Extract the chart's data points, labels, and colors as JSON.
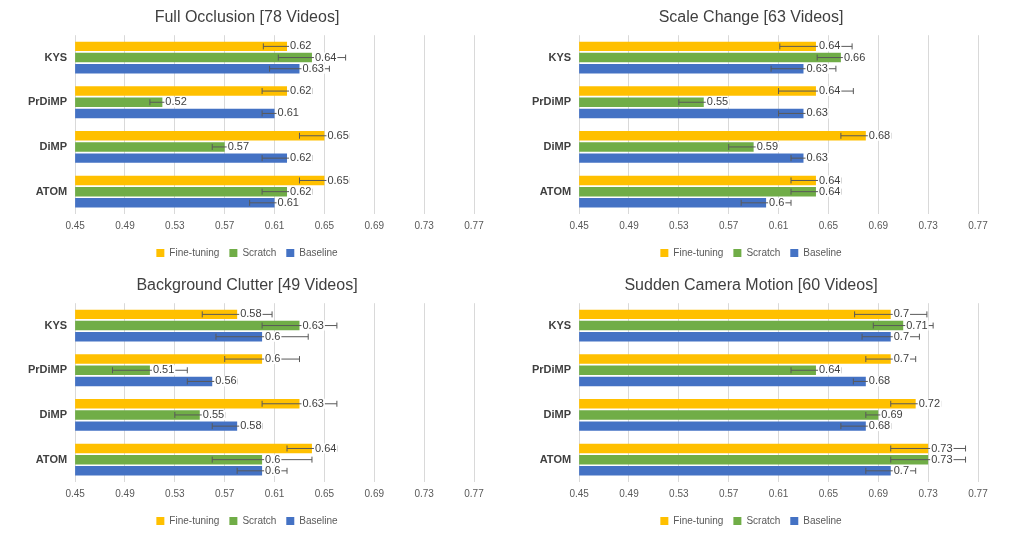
{
  "chart_data": [
    {
      "type": "bar",
      "orientation": "horizontal",
      "title": "Full Occlusion [78 Videos]",
      "categories": [
        "KYS",
        "PrDiMP",
        "DiMP",
        "ATOM"
      ],
      "xlim": [
        0.45,
        0.77
      ],
      "xticks": [
        0.45,
        0.49,
        0.53,
        0.57,
        0.61,
        0.65,
        0.69,
        0.73,
        0.77
      ],
      "grid": "x",
      "legend": "bottom",
      "data_labels": true,
      "series": [
        {
          "name": "Fine-tuning",
          "color": "#ffc000",
          "values": [
            0.62,
            0.62,
            0.65,
            0.65
          ],
          "errors": [
            0.019,
            0.02,
            0.02,
            0.02
          ]
        },
        {
          "name": "Scratch",
          "color": "#70ad47",
          "values": [
            0.64,
            0.52,
            0.57,
            0.62
          ],
          "errors": [
            0.027,
            0.01,
            0.01,
            0.02
          ]
        },
        {
          "name": "Baseline",
          "color": "#4472c4",
          "values": [
            0.63,
            0.61,
            0.62,
            0.61
          ],
          "errors": [
            0.024,
            0.01,
            0.02,
            0.02
          ]
        }
      ]
    },
    {
      "type": "bar",
      "orientation": "horizontal",
      "title": "Scale Change [63 Videos]",
      "categories": [
        "KYS",
        "PrDiMP",
        "DiMP",
        "ATOM"
      ],
      "xlim": [
        0.45,
        0.77
      ],
      "xticks": [
        0.45,
        0.49,
        0.53,
        0.57,
        0.61,
        0.65,
        0.69,
        0.73,
        0.77
      ],
      "grid": "x",
      "legend": "bottom",
      "data_labels": true,
      "series": [
        {
          "name": "Fine-tuning",
          "color": "#ffc000",
          "values": [
            0.64,
            0.64,
            0.68,
            0.64
          ],
          "errors": [
            0.029,
            0.03,
            0.02,
            0.02
          ]
        },
        {
          "name": "Scratch",
          "color": "#70ad47",
          "values": [
            0.66,
            0.55,
            0.59,
            0.64
          ],
          "errors": [
            0.019,
            0.02,
            0.02,
            0.02
          ]
        },
        {
          "name": "Baseline",
          "color": "#4472c4",
          "values": [
            0.63,
            0.63,
            0.63,
            0.6
          ],
          "errors": [
            0.026,
            0.02,
            0.01,
            0.02
          ]
        }
      ]
    },
    {
      "type": "bar",
      "orientation": "horizontal",
      "title": "Background Clutter [49 Videos]",
      "categories": [
        "KYS",
        "PrDiMP",
        "DiMP",
        "ATOM"
      ],
      "xlim": [
        0.45,
        0.77
      ],
      "xticks": [
        0.45,
        0.49,
        0.53,
        0.57,
        0.61,
        0.65,
        0.69,
        0.73,
        0.77
      ],
      "grid": "x",
      "legend": "bottom",
      "data_labels": true,
      "series": [
        {
          "name": "Fine-tuning",
          "color": "#ffc000",
          "values": [
            0.58,
            0.6,
            0.63,
            0.64
          ],
          "errors": [
            0.028,
            0.03,
            0.03,
            0.02
          ]
        },
        {
          "name": "Scratch",
          "color": "#70ad47",
          "values": [
            0.63,
            0.51,
            0.55,
            0.6
          ],
          "errors": [
            0.03,
            0.03,
            0.02,
            0.04
          ]
        },
        {
          "name": "Baseline",
          "color": "#4472c4",
          "values": [
            0.6,
            0.56,
            0.58,
            0.6
          ],
          "errors": [
            0.037,
            0.02,
            0.02,
            0.02
          ]
        }
      ]
    },
    {
      "type": "bar",
      "orientation": "horizontal",
      "title": "Sudden Camera Motion [60 Videos]",
      "categories": [
        "KYS",
        "PrDiMP",
        "DiMP",
        "ATOM"
      ],
      "xlim": [
        0.45,
        0.77
      ],
      "xticks": [
        0.45,
        0.49,
        0.53,
        0.57,
        0.61,
        0.65,
        0.69,
        0.73,
        0.77
      ],
      "grid": "x",
      "legend": "bottom",
      "data_labels": true,
      "series": [
        {
          "name": "Fine-tuning",
          "color": "#ffc000",
          "values": [
            0.7,
            0.7,
            0.72,
            0.73
          ],
          "errors": [
            0.029,
            0.02,
            0.02,
            0.03
          ]
        },
        {
          "name": "Scratch",
          "color": "#70ad47",
          "values": [
            0.71,
            0.64,
            0.69,
            0.73
          ],
          "errors": [
            0.024,
            0.02,
            0.01,
            0.03
          ]
        },
        {
          "name": "Baseline",
          "color": "#4472c4",
          "values": [
            0.7,
            0.68,
            0.68,
            0.7
          ],
          "errors": [
            0.023,
            0.01,
            0.02,
            0.02
          ]
        }
      ]
    }
  ]
}
